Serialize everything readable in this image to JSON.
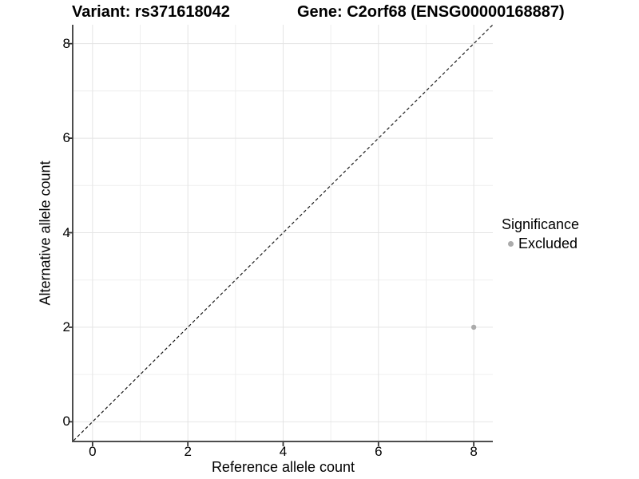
{
  "chart_data": {
    "type": "scatter",
    "titles": {
      "left": "Variant: rs371618042",
      "right": "Gene: C2orf68 (ENSG00000168887)"
    },
    "xlabel": "Reference allele count",
    "ylabel": "Alternative allele count",
    "xlim": [
      -0.4,
      8.4
    ],
    "ylim": [
      -0.4,
      8.4
    ],
    "x_ticks": [
      0,
      2,
      4,
      6,
      8
    ],
    "y_ticks": [
      0,
      2,
      4,
      6,
      8
    ],
    "x_minor_ticks": [
      1,
      3,
      5,
      7
    ],
    "y_minor_ticks": [
      1,
      3,
      5,
      7
    ],
    "grid": "on",
    "points": [
      {
        "x": 8,
        "y": 2,
        "series": "Excluded",
        "color": "#ababab"
      }
    ],
    "reference_line": {
      "kind": "identity",
      "style": "dashed",
      "color": "#1a1a1a"
    },
    "legend": {
      "title": "Significance",
      "position": "right",
      "items": [
        {
          "label": "Excluded",
          "color": "#ababab"
        }
      ]
    }
  },
  "colors": {
    "background": "#ffffff",
    "grid_major": "#e4e4e4",
    "grid_minor": "#efefef",
    "axis_line": "#4d4d4d",
    "tick": "#333333",
    "text": "#000000"
  }
}
